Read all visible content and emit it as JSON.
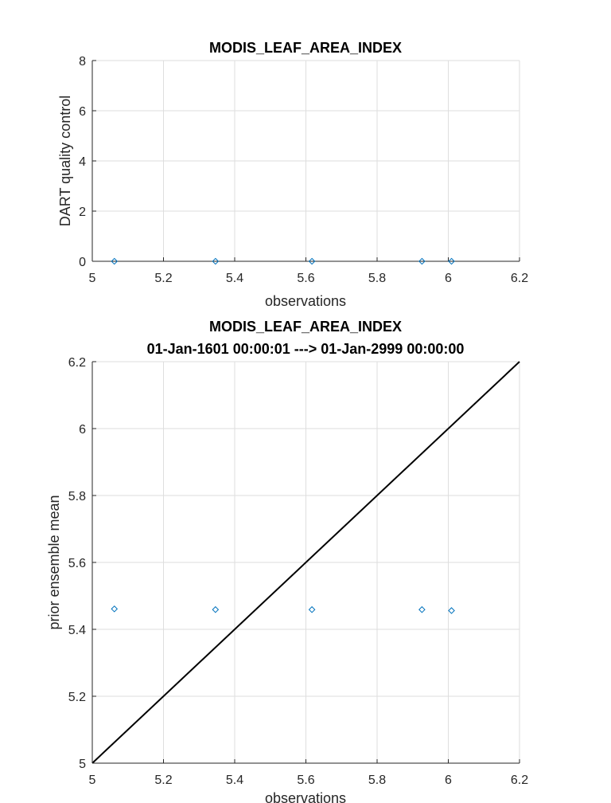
{
  "chart_data": [
    {
      "type": "scatter",
      "title": "MODIS_LEAF_AREA_INDEX",
      "xlabel": "observations",
      "ylabel": "DART quality control",
      "xlim": [
        5,
        6.2
      ],
      "ylim": [
        0,
        8
      ],
      "xticks": [
        "5",
        "5.2",
        "5.4",
        "5.6",
        "5.8",
        "6",
        "6.2"
      ],
      "yticks": [
        "0",
        "2",
        "4",
        "6",
        "8"
      ],
      "grid": true,
      "marker_color": "#0072bd",
      "series": [
        {
          "x": [
            5.062,
            5.346,
            5.617,
            5.926,
            6.009
          ],
          "y": [
            0,
            0,
            0,
            0,
            0
          ]
        }
      ]
    },
    {
      "type": "scatter",
      "title": "MODIS_LEAF_AREA_INDEX",
      "subtitle": "01-Jan-1601 00:00:01 ---> 01-Jan-2999 00:00:00",
      "xlabel": "observations",
      "ylabel": "prior ensemble mean",
      "xlim": [
        5,
        6.2
      ],
      "ylim": [
        5,
        6.2
      ],
      "xticks": [
        "5",
        "5.2",
        "5.4",
        "5.6",
        "5.8",
        "6",
        "6.2"
      ],
      "yticks": [
        "5",
        "5.2",
        "5.4",
        "5.6",
        "5.8",
        "6",
        "6.2"
      ],
      "grid": true,
      "marker_color": "#0072bd",
      "reference_line": {
        "x": [
          5,
          6.2
        ],
        "y": [
          5,
          6.2
        ],
        "color": "#000000"
      },
      "series": [
        {
          "x": [
            5.062,
            5.346,
            5.617,
            5.926,
            6.009
          ],
          "y": [
            5.461,
            5.459,
            5.459,
            5.459,
            5.456
          ]
        }
      ]
    }
  ]
}
